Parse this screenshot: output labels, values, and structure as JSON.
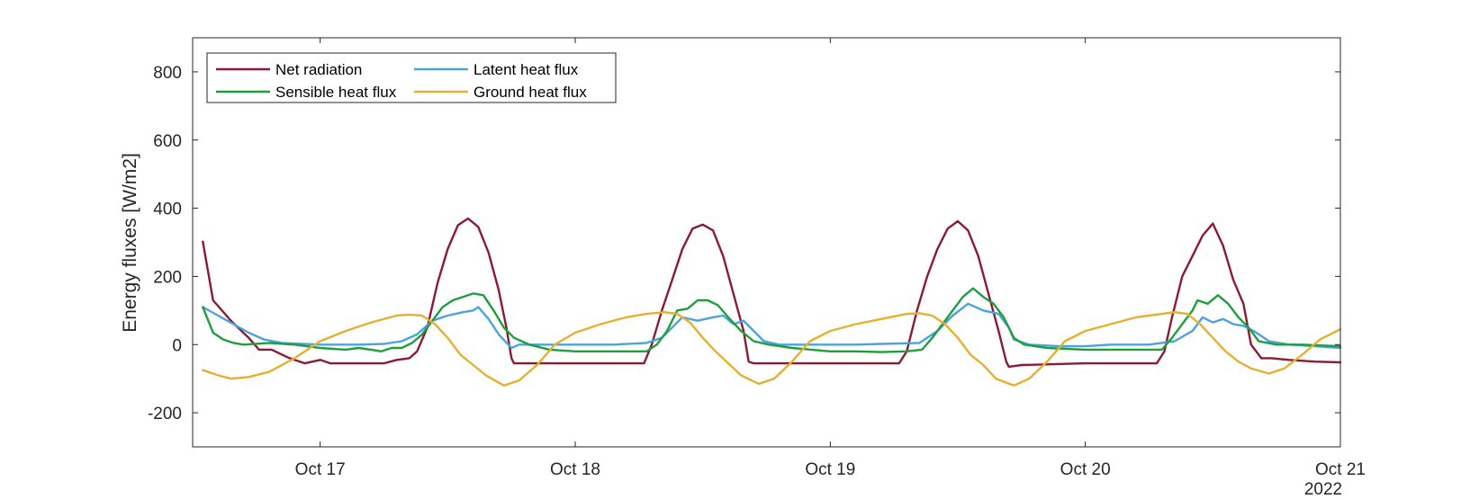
{
  "chart_data": {
    "type": "line",
    "title": "",
    "xlabel": "",
    "ylabel": "Energy fluxes [W/m2]",
    "x_units": "days since Oct 16 2022 00:00",
    "xlim": [
      0.5,
      5.0
    ],
    "ylim": [
      -300,
      900
    ],
    "y_ticks": [
      -200,
      0,
      200,
      400,
      600,
      800
    ],
    "x_ticks": [
      {
        "value": 1,
        "label": "Oct 17"
      },
      {
        "value": 2,
        "label": "Oct 18"
      },
      {
        "value": 3,
        "label": "Oct 19"
      },
      {
        "value": 4,
        "label": "Oct 20"
      },
      {
        "value": 5,
        "label": "Oct 21"
      }
    ],
    "year_label": "2022",
    "grid": false,
    "legend_position": "top-left",
    "series": [
      {
        "name": "Net radiation",
        "color": "#8b1a35",
        "points": [
          [
            0.54,
            302
          ],
          [
            0.58,
            130
          ],
          [
            0.65,
            70
          ],
          [
            0.72,
            20
          ],
          [
            0.76,
            -15
          ],
          [
            0.81,
            -15
          ],
          [
            0.88,
            -40
          ],
          [
            0.94,
            -55
          ],
          [
            1.0,
            -45
          ],
          [
            1.04,
            -55
          ],
          [
            1.15,
            -55
          ],
          [
            1.25,
            -55
          ],
          [
            1.3,
            -45
          ],
          [
            1.35,
            -40
          ],
          [
            1.38,
            -20
          ],
          [
            1.42,
            50
          ],
          [
            1.46,
            180
          ],
          [
            1.5,
            280
          ],
          [
            1.54,
            350
          ],
          [
            1.58,
            370
          ],
          [
            1.62,
            345
          ],
          [
            1.66,
            270
          ],
          [
            1.7,
            160
          ],
          [
            1.73,
            50
          ],
          [
            1.75,
            -40
          ],
          [
            1.76,
            -55
          ],
          [
            2.0,
            -55
          ],
          [
            2.27,
            -55
          ],
          [
            2.3,
            0
          ],
          [
            2.34,
            100
          ],
          [
            2.38,
            190
          ],
          [
            2.42,
            280
          ],
          [
            2.46,
            340
          ],
          [
            2.5,
            352
          ],
          [
            2.54,
            335
          ],
          [
            2.58,
            260
          ],
          [
            2.62,
            150
          ],
          [
            2.66,
            40
          ],
          [
            2.68,
            -50
          ],
          [
            2.7,
            -55
          ],
          [
            3.0,
            -55
          ],
          [
            3.27,
            -55
          ],
          [
            3.3,
            -20
          ],
          [
            3.34,
            100
          ],
          [
            3.38,
            200
          ],
          [
            3.42,
            280
          ],
          [
            3.46,
            340
          ],
          [
            3.5,
            362
          ],
          [
            3.54,
            335
          ],
          [
            3.58,
            260
          ],
          [
            3.62,
            150
          ],
          [
            3.66,
            40
          ],
          [
            3.69,
            -50
          ],
          [
            3.7,
            -65
          ],
          [
            3.75,
            -60
          ],
          [
            4.0,
            -55
          ],
          [
            4.18,
            -55
          ],
          [
            4.28,
            -55
          ],
          [
            4.31,
            -20
          ],
          [
            4.34,
            80
          ],
          [
            4.38,
            200
          ],
          [
            4.42,
            260
          ],
          [
            4.46,
            320
          ],
          [
            4.5,
            355
          ],
          [
            4.54,
            290
          ],
          [
            4.58,
            190
          ],
          [
            4.62,
            120
          ],
          [
            4.65,
            0
          ],
          [
            4.69,
            -40
          ],
          [
            4.73,
            -40
          ],
          [
            4.8,
            -45
          ],
          [
            4.9,
            -50
          ],
          [
            5.0,
            -52
          ]
        ]
      },
      {
        "name": "Latent heat flux",
        "color": "#4aa3df",
        "points": [
          [
            0.54,
            110
          ],
          [
            0.6,
            85
          ],
          [
            0.66,
            60
          ],
          [
            0.72,
            35
          ],
          [
            0.78,
            15
          ],
          [
            0.85,
            5
          ],
          [
            1.0,
            0
          ],
          [
            1.15,
            0
          ],
          [
            1.25,
            2
          ],
          [
            1.32,
            10
          ],
          [
            1.38,
            30
          ],
          [
            1.44,
            70
          ],
          [
            1.5,
            85
          ],
          [
            1.56,
            95
          ],
          [
            1.6,
            100
          ],
          [
            1.62,
            110
          ],
          [
            1.66,
            75
          ],
          [
            1.7,
            30
          ],
          [
            1.75,
            -10
          ],
          [
            1.78,
            0
          ],
          [
            1.85,
            0
          ],
          [
            2.0,
            0
          ],
          [
            2.15,
            0
          ],
          [
            2.28,
            5
          ],
          [
            2.34,
            20
          ],
          [
            2.42,
            80
          ],
          [
            2.48,
            70
          ],
          [
            2.54,
            80
          ],
          [
            2.58,
            85
          ],
          [
            2.62,
            60
          ],
          [
            2.66,
            70
          ],
          [
            2.7,
            40
          ],
          [
            2.74,
            10
          ],
          [
            2.8,
            0
          ],
          [
            3.0,
            0
          ],
          [
            3.1,
            0
          ],
          [
            3.2,
            2
          ],
          [
            3.35,
            5
          ],
          [
            3.42,
            40
          ],
          [
            3.48,
            85
          ],
          [
            3.54,
            120
          ],
          [
            3.6,
            100
          ],
          [
            3.66,
            90
          ],
          [
            3.7,
            50
          ],
          [
            3.72,
            15
          ],
          [
            3.78,
            0
          ],
          [
            3.9,
            -5
          ],
          [
            4.0,
            -5
          ],
          [
            4.1,
            0
          ],
          [
            4.25,
            0
          ],
          [
            4.35,
            10
          ],
          [
            4.42,
            40
          ],
          [
            4.46,
            80
          ],
          [
            4.5,
            65
          ],
          [
            4.54,
            75
          ],
          [
            4.58,
            60
          ],
          [
            4.62,
            55
          ],
          [
            4.66,
            40
          ],
          [
            4.72,
            10
          ],
          [
            4.8,
            0
          ],
          [
            4.9,
            -5
          ],
          [
            5.0,
            -10
          ]
        ]
      },
      {
        "name": "Sensible heat flux",
        "color": "#1f9e3e",
        "points": [
          [
            0.54,
            110
          ],
          [
            0.58,
            35
          ],
          [
            0.62,
            15
          ],
          [
            0.66,
            5
          ],
          [
            0.7,
            0
          ],
          [
            0.8,
            5
          ],
          [
            0.9,
            0
          ],
          [
            1.0,
            -10
          ],
          [
            1.1,
            -15
          ],
          [
            1.15,
            -10
          ],
          [
            1.2,
            -15
          ],
          [
            1.24,
            -20
          ],
          [
            1.28,
            -10
          ],
          [
            1.32,
            -10
          ],
          [
            1.36,
            5
          ],
          [
            1.4,
            30
          ],
          [
            1.44,
            70
          ],
          [
            1.48,
            110
          ],
          [
            1.52,
            130
          ],
          [
            1.56,
            140
          ],
          [
            1.6,
            150
          ],
          [
            1.64,
            145
          ],
          [
            1.68,
            100
          ],
          [
            1.72,
            50
          ],
          [
            1.76,
            20
          ],
          [
            1.82,
            0
          ],
          [
            1.9,
            -15
          ],
          [
            2.0,
            -20
          ],
          [
            2.1,
            -20
          ],
          [
            2.2,
            -20
          ],
          [
            2.28,
            -20
          ],
          [
            2.32,
            0
          ],
          [
            2.36,
            40
          ],
          [
            2.4,
            100
          ],
          [
            2.44,
            105
          ],
          [
            2.48,
            130
          ],
          [
            2.52,
            130
          ],
          [
            2.56,
            115
          ],
          [
            2.6,
            80
          ],
          [
            2.65,
            40
          ],
          [
            2.7,
            10
          ],
          [
            2.76,
            0
          ],
          [
            2.85,
            -10
          ],
          [
            3.0,
            -20
          ],
          [
            3.1,
            -20
          ],
          [
            3.2,
            -22
          ],
          [
            3.3,
            -20
          ],
          [
            3.36,
            -15
          ],
          [
            3.4,
            20
          ],
          [
            3.44,
            60
          ],
          [
            3.48,
            100
          ],
          [
            3.52,
            140
          ],
          [
            3.56,
            165
          ],
          [
            3.6,
            140
          ],
          [
            3.64,
            120
          ],
          [
            3.68,
            80
          ],
          [
            3.72,
            20
          ],
          [
            3.76,
            0
          ],
          [
            3.85,
            -10
          ],
          [
            4.0,
            -15
          ],
          [
            4.1,
            -15
          ],
          [
            4.25,
            -15
          ],
          [
            4.3,
            -15
          ],
          [
            4.34,
            20
          ],
          [
            4.38,
            60
          ],
          [
            4.42,
            100
          ],
          [
            4.44,
            130
          ],
          [
            4.48,
            120
          ],
          [
            4.52,
            145
          ],
          [
            4.56,
            120
          ],
          [
            4.6,
            80
          ],
          [
            4.64,
            50
          ],
          [
            4.68,
            10
          ],
          [
            4.75,
            0
          ],
          [
            4.85,
            0
          ],
          [
            5.0,
            -5
          ]
        ]
      },
      {
        "name": "Ground heat flux",
        "color": "#e6b02f",
        "points": [
          [
            0.54,
            -75
          ],
          [
            0.6,
            -90
          ],
          [
            0.65,
            -100
          ],
          [
            0.72,
            -95
          ],
          [
            0.8,
            -80
          ],
          [
            0.9,
            -40
          ],
          [
            1.0,
            10
          ],
          [
            1.1,
            40
          ],
          [
            1.2,
            65
          ],
          [
            1.3,
            85
          ],
          [
            1.35,
            88
          ],
          [
            1.4,
            85
          ],
          [
            1.45,
            60
          ],
          [
            1.5,
            20
          ],
          [
            1.55,
            -30
          ],
          [
            1.6,
            -60
          ],
          [
            1.65,
            -90
          ],
          [
            1.72,
            -120
          ],
          [
            1.78,
            -105
          ],
          [
            1.85,
            -60
          ],
          [
            1.92,
            0
          ],
          [
            2.0,
            35
          ],
          [
            2.1,
            60
          ],
          [
            2.2,
            80
          ],
          [
            2.28,
            90
          ],
          [
            2.35,
            95
          ],
          [
            2.4,
            90
          ],
          [
            2.45,
            65
          ],
          [
            2.5,
            20
          ],
          [
            2.55,
            -20
          ],
          [
            2.6,
            -55
          ],
          [
            2.65,
            -90
          ],
          [
            2.72,
            -115
          ],
          [
            2.78,
            -100
          ],
          [
            2.85,
            -50
          ],
          [
            2.92,
            10
          ],
          [
            3.0,
            40
          ],
          [
            3.1,
            60
          ],
          [
            3.2,
            75
          ],
          [
            3.3,
            90
          ],
          [
            3.35,
            92
          ],
          [
            3.4,
            85
          ],
          [
            3.45,
            60
          ],
          [
            3.5,
            20
          ],
          [
            3.55,
            -30
          ],
          [
            3.6,
            -60
          ],
          [
            3.65,
            -100
          ],
          [
            3.72,
            -120
          ],
          [
            3.78,
            -100
          ],
          [
            3.85,
            -50
          ],
          [
            3.92,
            10
          ],
          [
            4.0,
            40
          ],
          [
            4.1,
            60
          ],
          [
            4.2,
            80
          ],
          [
            4.3,
            90
          ],
          [
            4.35,
            95
          ],
          [
            4.4,
            90
          ],
          [
            4.45,
            60
          ],
          [
            4.5,
            20
          ],
          [
            4.55,
            -20
          ],
          [
            4.6,
            -50
          ],
          [
            4.65,
            -70
          ],
          [
            4.72,
            -85
          ],
          [
            4.78,
            -70
          ],
          [
            4.85,
            -30
          ],
          [
            4.92,
            15
          ],
          [
            5.0,
            45
          ]
        ]
      }
    ]
  }
}
